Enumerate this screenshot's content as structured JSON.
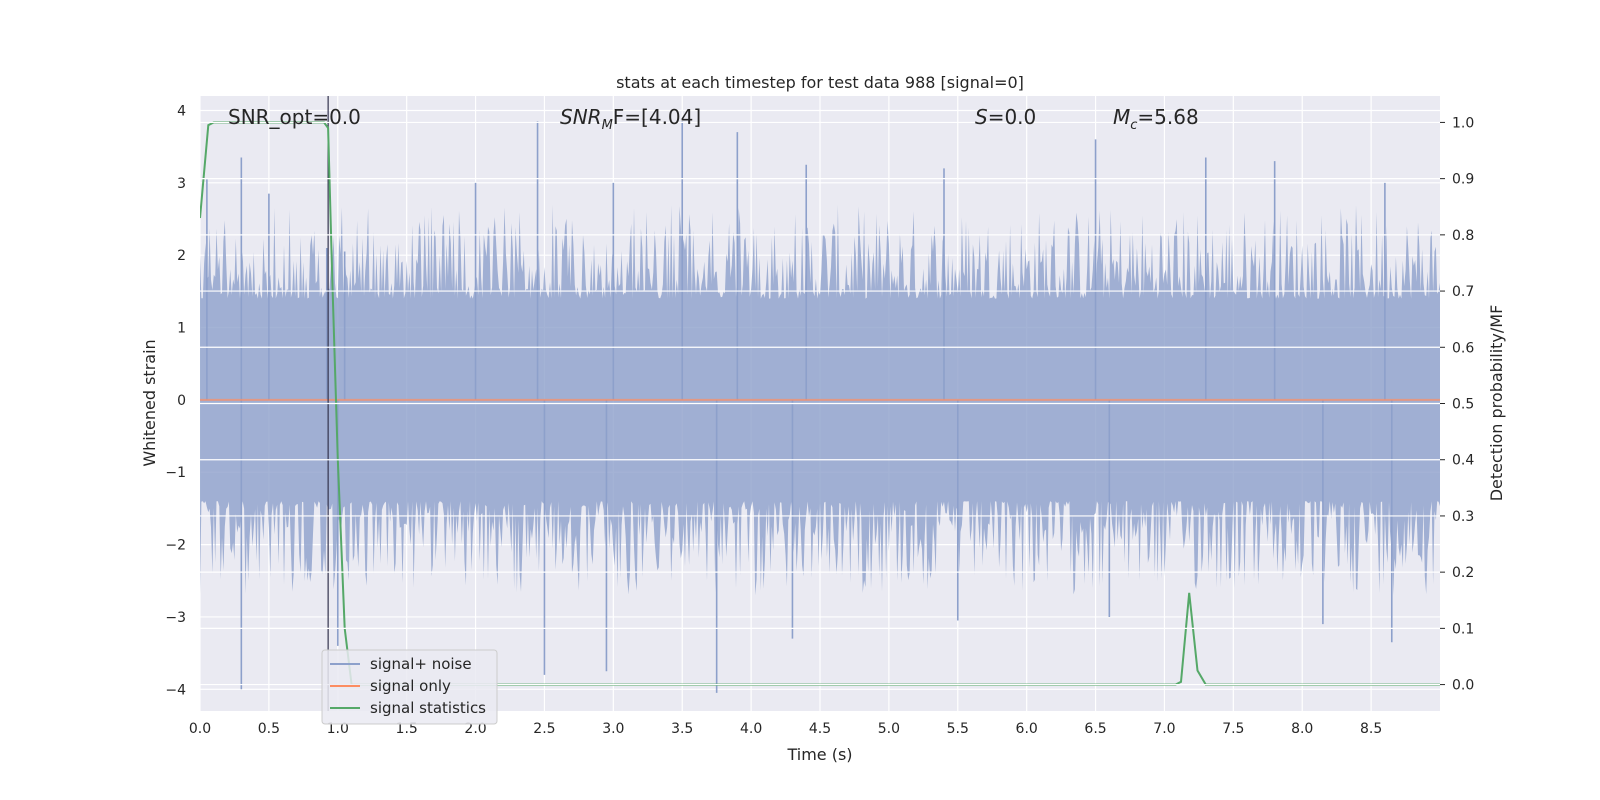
{
  "chart_data": {
    "type": "line",
    "title": "stats at each timestep for test data 988 [signal=0]",
    "xlabel": "Time (s)",
    "ylabel": "Whitened strain",
    "y2label": "Detection probability/MF",
    "xlim": [
      0.0,
      9.0
    ],
    "ylim": [
      -4.3,
      4.2
    ],
    "y2lim": [
      -0.047,
      1.047
    ],
    "xticks": [
      "0.0",
      "0.5",
      "1.0",
      "1.5",
      "2.0",
      "2.5",
      "3.0",
      "3.5",
      "4.0",
      "4.5",
      "5.0",
      "5.5",
      "6.0",
      "6.5",
      "7.0",
      "7.5",
      "8.0",
      "8.5"
    ],
    "yticks": [
      "4",
      "3",
      "2",
      "1",
      "0",
      "−1",
      "−2",
      "−3",
      "−4"
    ],
    "y2ticks": [
      "1.0",
      "0.9",
      "0.8",
      "0.7",
      "0.6",
      "0.5",
      "0.4",
      "0.3",
      "0.2",
      "0.1",
      "0.0"
    ],
    "grid": true,
    "legend_position": "lower-left",
    "annotations": {
      "snr_opt": "SNR_opt=0.0",
      "snr_mf_main": "SNR",
      "snr_mf_sub": "M",
      "snr_mf_rest": "F=[4.04]",
      "s_main": "S",
      "s_rest": "=0.0",
      "mc_main": "M",
      "mc_sub": "c",
      "mc_rest": "=5.68"
    },
    "marker_line_x": 0.93,
    "series": [
      {
        "name": "signal+ noise",
        "color": "#8da0cb",
        "axis": "left",
        "description": "whitened noise, roughly ±1.5 band with spikes to ±3.9",
        "peak_points": [
          [
            0.05,
            3.05
          ],
          [
            0.3,
            3.35
          ],
          [
            0.5,
            2.85
          ],
          [
            0.92,
            2.1
          ],
          [
            1.05,
            2.05
          ],
          [
            2.0,
            3.0
          ],
          [
            2.45,
            3.85
          ],
          [
            3.0,
            3.0
          ],
          [
            3.5,
            3.85
          ],
          [
            3.9,
            3.7
          ],
          [
            4.4,
            3.25
          ],
          [
            5.4,
            3.2
          ],
          [
            6.5,
            3.6
          ],
          [
            7.3,
            3.35
          ],
          [
            7.8,
            3.3
          ],
          [
            8.6,
            3.0
          ],
          [
            0.3,
            -4.0
          ],
          [
            1.0,
            -3.4
          ],
          [
            2.5,
            -3.8
          ],
          [
            2.95,
            -3.75
          ],
          [
            3.75,
            -4.05
          ],
          [
            4.3,
            -3.3
          ],
          [
            5.5,
            -3.05
          ],
          [
            6.6,
            -3.0
          ],
          [
            8.15,
            -3.1
          ],
          [
            8.65,
            -3.35
          ]
        ]
      },
      {
        "name": "signal only",
        "color": "#fc8d62",
        "axis": "left",
        "x": [
          0.0,
          9.0
        ],
        "y": [
          0.0,
          0.0
        ]
      },
      {
        "name": "signal statistics",
        "color": "#55a868",
        "axis": "right",
        "x": [
          0.0,
          0.06,
          0.1,
          0.2,
          0.5,
          0.9,
          0.93,
          0.96,
          1.0,
          1.05,
          1.1,
          2.0,
          5.0,
          7.0,
          7.08,
          7.12,
          7.18,
          7.24,
          7.3,
          8.0,
          9.0
        ],
        "y": [
          0.83,
          0.995,
          1.0,
          1.0,
          1.0,
          1.0,
          0.99,
          0.72,
          0.4,
          0.1,
          0.0,
          0.0,
          0.0,
          0.0,
          0.0,
          0.005,
          0.163,
          0.025,
          0.0,
          0.0,
          0.0
        ]
      }
    ]
  }
}
